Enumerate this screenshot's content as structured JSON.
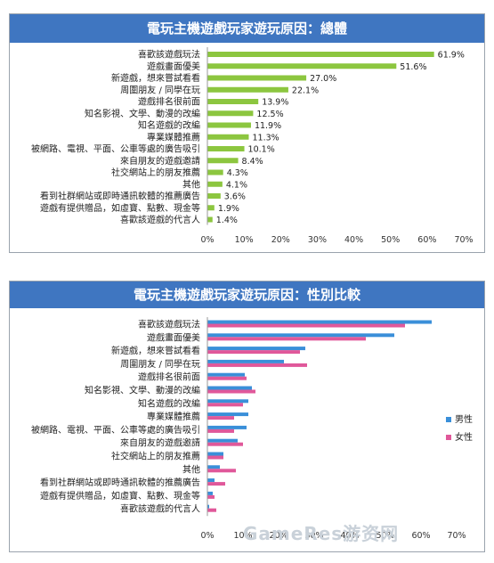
{
  "chart_data": [
    {
      "type": "bar",
      "orientation": "horizontal",
      "title": "電玩主機遊戲玩家遊玩原因：總體",
      "categories": [
        "喜歡該遊戲玩法",
        "遊戲畫面優美",
        "新遊戲，想來嘗試看看",
        "周圍朋友 / 同學在玩",
        "遊戲排名很前面",
        "知名影視、文學、動漫的改編",
        "知名遊戲的改編",
        "專業媒體推薦",
        "被網路、電視、平面、公車等處的廣告吸引",
        "來自朋友的遊戲邀請",
        "社交網站上的朋友推薦",
        "其他",
        "看到社群網站或即時通訊軟體的推薦廣告",
        "遊戲有提供贈品，如虛寶、點數、現金等",
        "喜歡該遊戲的代言人"
      ],
      "values": [
        61.9,
        51.6,
        27.0,
        22.1,
        13.9,
        12.5,
        11.9,
        11.3,
        10.1,
        8.4,
        4.3,
        4.1,
        3.6,
        1.9,
        1.4
      ],
      "value_labels": [
        "61.9%",
        "51.6%",
        "27.0%",
        "22.1%",
        "13.9%",
        "12.5%",
        "11.9%",
        "11.3%",
        "10.1%",
        "8.4%",
        "4.3%",
        "4.1%",
        "3.6%",
        "1.9%",
        "1.4%"
      ],
      "xlim": [
        0,
        70
      ],
      "xticks": [
        "0%",
        "10%",
        "20%",
        "30%",
        "40%",
        "50%",
        "60%",
        "70%"
      ],
      "bar_color": "#8cc63f"
    },
    {
      "type": "bar",
      "orientation": "horizontal",
      "title": "電玩主機遊戲玩家遊玩原因：性別比較",
      "categories": [
        "喜歡該遊戲玩法",
        "遊戲畫面優美",
        "新遊戲，想來嘗試看看",
        "周圍朋友 / 同學在玩",
        "遊戲排名很前面",
        "知名影視、文學、動漫的改編",
        "知名遊戲的改編",
        "專業媒體推薦",
        "被網路、電視、平面、公車等處的廣告吸引",
        "來自朋友的遊戲邀請",
        "社交網站上的朋友推薦",
        "其他",
        "看到社群網站或即時通訊軟體的推薦廣告",
        "遊戲有提供贈品，如虛寶、點數、現金等",
        "喜歡該遊戲的代言人"
      ],
      "series": [
        {
          "name": "男性",
          "color": "#3a8fd9",
          "values": [
            63,
            52.5,
            27.5,
            21.5,
            10.5,
            12.5,
            11.5,
            11.5,
            11,
            8.5,
            4.5,
            3.5,
            2,
            1.5,
            0.5
          ]
        },
        {
          "name": "女性",
          "color": "#e0589a",
          "values": [
            55.5,
            44.5,
            26,
            28,
            11,
            13.5,
            10,
            7.5,
            7.5,
            10,
            4.5,
            8,
            5,
            2,
            2.5
          ]
        }
      ],
      "xlim": [
        0,
        70
      ],
      "xticks": [
        "0%",
        "10%",
        "20%",
        "30%",
        "40%",
        "50%",
        "60%",
        "70%"
      ],
      "legend_position": "right"
    }
  ],
  "watermark": "GameRes游资网"
}
